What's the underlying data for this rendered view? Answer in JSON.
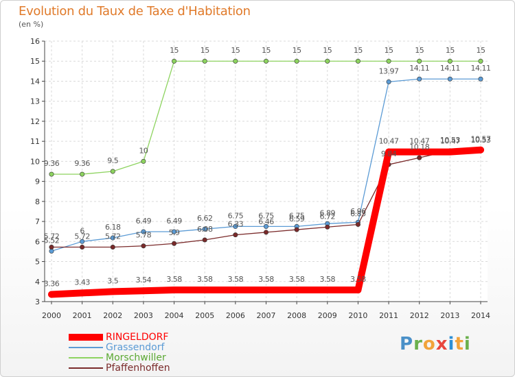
{
  "header": {
    "title": "Evolution du Taux de Taxe d'Habitation",
    "subtitle": "(en %)"
  },
  "brand": {
    "logo_text": "Proxiti"
  },
  "chart_data": {
    "type": "line",
    "title": "Evolution du Taux de Taxe d'Habitation",
    "ylabel": "(en %)",
    "xlabel": "",
    "x": [
      "2000",
      "2001",
      "2002",
      "2003",
      "2004",
      "2005",
      "2006",
      "2007",
      "2008",
      "2009",
      "2010",
      "2011",
      "2012",
      "2013",
      "2014"
    ],
    "ylim": [
      3,
      16
    ],
    "yticks": [
      "3",
      "4",
      "5",
      "6",
      "7",
      "8",
      "9",
      "10",
      "11",
      "12",
      "13",
      "14",
      "15",
      "16"
    ],
    "grid": true,
    "legend_position": "bottom-left",
    "series": [
      {
        "name": "RINGELDORF",
        "color": "#ff0000",
        "width": "thick",
        "values": [
          3.36,
          3.43,
          3.5,
          3.54,
          3.58,
          3.58,
          3.58,
          3.58,
          3.58,
          3.58,
          3.58,
          10.47,
          10.47,
          10.47,
          10.57
        ],
        "labels": [
          "3.36",
          "3.43",
          "3.5",
          "3.54",
          "3.58",
          "3.58",
          "3.58",
          "3.58",
          "3.58",
          "3.58",
          "3.58",
          "10.47",
          "10.47",
          "10.47",
          "10.57"
        ]
      },
      {
        "name": "Grassendorf",
        "color": "#5b9bd5",
        "width": "thin",
        "values": [
          5.52,
          6,
          6.18,
          6.49,
          6.49,
          6.62,
          6.75,
          6.75,
          6.75,
          6.89,
          6.96,
          13.97,
          14.11,
          14.11,
          14.11
        ],
        "labels": [
          "5.52",
          "6",
          "6.18",
          "6.49",
          "6.49",
          "6.62",
          "6.75",
          "6.75",
          "6.75",
          "6.89",
          "6.96",
          "13.97",
          "14.11",
          "14.11",
          "14.11"
        ]
      },
      {
        "name": "Morschwiller",
        "color": "#8dd35f",
        "width": "thin",
        "values": [
          9.36,
          9.36,
          9.5,
          10,
          15,
          15,
          15,
          15,
          15,
          15,
          15,
          15,
          15,
          15,
          15
        ],
        "labels": [
          "9.36",
          "9.36",
          "9.5",
          "10",
          "15",
          "15",
          "15",
          "15",
          "15",
          "15",
          "15",
          "15",
          "15",
          "15",
          "15"
        ]
      },
      {
        "name": "Pfaffenhoffen",
        "color": "#7a2a2a",
        "width": "thin",
        "values": [
          5.72,
          5.72,
          5.72,
          5.78,
          5.9,
          6.08,
          6.33,
          6.46,
          6.59,
          6.72,
          6.85,
          9.84,
          10.18,
          10.53,
          10.53
        ],
        "labels": [
          "5.72",
          "5.72",
          "5.72",
          "5.78",
          "5.9",
          "6.08",
          "6.33",
          "6.46",
          "6.59",
          "6.72",
          "6.85",
          "9.84",
          "10.18",
          "10.53",
          "10.53"
        ]
      }
    ]
  }
}
